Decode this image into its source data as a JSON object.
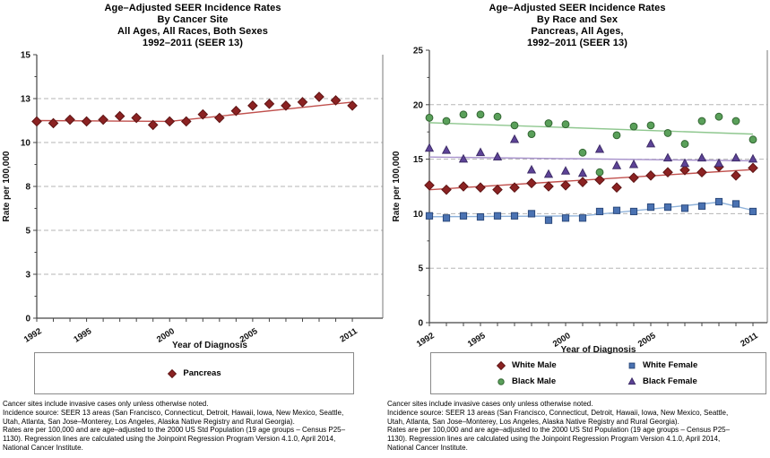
{
  "footnotes": [
    "Cancer sites include invasive cases only unless otherwise noted.",
    "Incidence source: SEER 13 areas (San Francisco, Connecticut, Detroit, Hawaii, Iowa, New Mexico, Seattle,",
    "Utah, Atlanta, San Jose–Monterey, Los Angeles, Alaska Native Registry and Rural Georgia).",
    "Rates are per 100,000 and are age–adjusted to the 2000 US Std Population (19 age groups – Census P25–",
    "1130). Regression lines are calculated using the Joinpoint Regression Program Version 4.1.0, April 2014,",
    "National Cancer Institute."
  ],
  "chart_data": [
    {
      "type": "scatter",
      "trend": "joinpoint regression lines",
      "grid": "dashed horizontal gridlines",
      "legend_position": "bottom box",
      "title_lines": [
        "Age–Adjusted SEER Incidence Rates",
        "By Cancer Site",
        "All Ages, All Races, Both Sexes",
        "1992–2011  (SEER 13)"
      ],
      "xlabel": "Year of Diagnosis",
      "ylabel": "Rate per 100,000",
      "x_range": [
        1992,
        2011
      ],
      "x_tick_labels": [
        "1992",
        "1995",
        "2000",
        "2005",
        "2011"
      ],
      "y_axis": {
        "min": 0,
        "max": 15,
        "major_step": 2.5,
        "tick_values": [
          0,
          2.5,
          5,
          7.5,
          10,
          12.5,
          15
        ],
        "tick_labels": [
          "0",
          "3",
          "5",
          "8",
          "10",
          "13",
          "15"
        ]
      },
      "years": [
        1992,
        1993,
        1994,
        1995,
        1996,
        1997,
        1998,
        1999,
        2000,
        2001,
        2002,
        2003,
        2004,
        2005,
        2006,
        2007,
        2008,
        2009,
        2010,
        2011
      ],
      "series": [
        {
          "name": "Pancreas",
          "marker": "diamond",
          "fill": "#8b2222",
          "edge": "#5e1414",
          "trend_color": "#c0504d",
          "values": [
            11.2,
            11.1,
            11.3,
            11.2,
            11.3,
            11.5,
            11.4,
            11.0,
            11.2,
            11.2,
            11.6,
            11.4,
            11.8,
            12.1,
            12.2,
            12.1,
            12.3,
            12.6,
            12.4,
            12.1
          ],
          "trend_points": [
            [
              1992,
              11.25
            ],
            [
              2000,
              11.2
            ],
            [
              2011,
              12.3
            ]
          ]
        }
      ]
    },
    {
      "type": "scatter",
      "trend": "joinpoint regression lines",
      "grid": "dashed horizontal gridlines",
      "legend_position": "bottom box, 2x2",
      "title_lines": [
        "Age–Adjusted SEER Incidence Rates",
        "By Race and Sex",
        "Pancreas, All Ages,",
        "1992–2011  (SEER 13)"
      ],
      "xlabel": "Year of Diagnosis",
      "ylabel": "Rate per 100,000",
      "x_range": [
        1992,
        2011
      ],
      "x_tick_labels": [
        "1992",
        "1995",
        "2000",
        "2005",
        "2011"
      ],
      "y_axis": {
        "min": 0,
        "max": 25,
        "major_step": 5,
        "tick_values": [
          0,
          5,
          10,
          15,
          20,
          25
        ],
        "tick_labels": [
          "0",
          "5",
          "10",
          "15",
          "20",
          "25"
        ]
      },
      "years": [
        1992,
        1993,
        1994,
        1995,
        1996,
        1997,
        1998,
        1999,
        2000,
        2001,
        2002,
        2003,
        2004,
        2005,
        2006,
        2007,
        2008,
        2009,
        2010,
        2011
      ],
      "series": [
        {
          "name": "White Male",
          "marker": "diamond",
          "fill": "#8b2222",
          "edge": "#5e1414",
          "trend_color": "#c0504d",
          "values": [
            12.6,
            12.2,
            12.5,
            12.4,
            12.2,
            12.4,
            12.8,
            12.5,
            12.6,
            12.9,
            13.1,
            12.4,
            13.3,
            13.5,
            13.8,
            14.0,
            13.8,
            14.3,
            13.5,
            14.2
          ],
          "trend_points": [
            [
              1992,
              12.2
            ],
            [
              2011,
              14.05
            ]
          ]
        },
        {
          "name": "White Female",
          "marker": "square",
          "fill": "#4a72b2",
          "edge": "#2c4a7c",
          "trend_color": "#8fb2da",
          "values": [
            9.8,
            9.6,
            9.8,
            9.7,
            9.8,
            9.8,
            10.0,
            9.4,
            9.6,
            9.6,
            10.2,
            10.3,
            10.2,
            10.6,
            10.6,
            10.5,
            10.7,
            11.1,
            10.9,
            10.2
          ],
          "trend_points": [
            [
              1992,
              9.72
            ],
            [
              2001,
              9.8
            ],
            [
              2009,
              11.05
            ],
            [
              2011,
              10.3
            ]
          ]
        },
        {
          "name": "Black Male",
          "marker": "circle",
          "fill": "#5aa05a",
          "edge": "#336633",
          "trend_color": "#8fc78f",
          "values": [
            18.8,
            18.5,
            19.1,
            19.1,
            18.9,
            18.1,
            17.3,
            18.3,
            18.2,
            15.6,
            13.8,
            17.2,
            18.0,
            18.1,
            17.4,
            16.4,
            18.5,
            18.9,
            18.5,
            16.8
          ],
          "trend_points": [
            [
              1992,
              18.35
            ],
            [
              2011,
              17.3
            ]
          ]
        },
        {
          "name": "Black Female",
          "marker": "triangle",
          "fill": "#5d4397",
          "edge": "#3f2d68",
          "trend_color": "#a893cc",
          "values": [
            16.0,
            15.8,
            15.0,
            15.6,
            15.2,
            16.8,
            14.0,
            13.6,
            13.9,
            13.7,
            15.9,
            14.4,
            14.5,
            16.4,
            15.1,
            14.6,
            15.1,
            14.6,
            15.1,
            15.0
          ],
          "trend_points": [
            [
              1992,
              15.2
            ],
            [
              2011,
              14.85
            ]
          ]
        }
      ]
    }
  ],
  "style_colors": {
    "gridline": "#b5b5b5",
    "axis": "#444444",
    "text": "#000000"
  }
}
